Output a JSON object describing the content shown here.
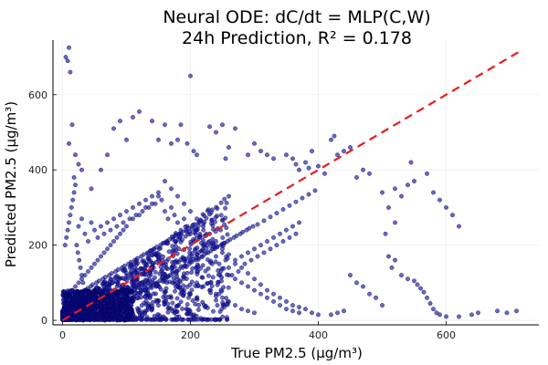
{
  "chart_data": {
    "type": "scatter",
    "title_line1": "Neural ODE: dC/dt = MLP(C,W)",
    "title_line2": "24h Prediction, R² = 0.178",
    "xlabel": "True PM2.5 (μg/m³)",
    "ylabel": "Predicted PM2.5 (μg/m³)",
    "xlim": [
      -15,
      745
    ],
    "ylim": [
      -12,
      745
    ],
    "xticks": [
      0,
      200,
      400,
      600
    ],
    "yticks": [
      0,
      200,
      400,
      600
    ],
    "grid": true,
    "legend": "none",
    "point_color": "#1a1aa0",
    "point_edge_color": "#000060",
    "reference_line": {
      "style": "dashed",
      "color": "#e81b1b",
      "x": [
        0,
        720
      ],
      "y": [
        0,
        720
      ]
    },
    "points": [
      [
        5,
        700
      ],
      [
        10,
        725
      ],
      [
        8,
        690
      ],
      [
        12,
        660
      ],
      [
        15,
        520
      ],
      [
        10,
        470
      ],
      [
        20,
        440
      ],
      [
        25,
        415
      ],
      [
        30,
        400
      ],
      [
        18,
        380
      ],
      [
        45,
        350
      ],
      [
        60,
        400
      ],
      [
        70,
        440
      ],
      [
        80,
        510
      ],
      [
        90,
        530
      ],
      [
        110,
        540
      ],
      [
        120,
        555
      ],
      [
        100,
        480
      ],
      [
        140,
        530
      ],
      [
        150,
        480
      ],
      [
        160,
        520
      ],
      [
        170,
        470
      ],
      [
        180,
        480
      ],
      [
        185,
        520
      ],
      [
        195,
        470
      ],
      [
        200,
        650
      ],
      [
        205,
        450
      ],
      [
        210,
        440
      ],
      [
        230,
        515
      ],
      [
        240,
        500
      ],
      [
        250,
        520
      ],
      [
        255,
        430
      ],
      [
        260,
        460
      ],
      [
        270,
        510
      ],
      [
        290,
        440
      ],
      [
        300,
        470
      ],
      [
        310,
        450
      ],
      [
        320,
        440
      ],
      [
        330,
        430
      ],
      [
        350,
        440
      ],
      [
        360,
        430
      ],
      [
        365,
        415
      ],
      [
        370,
        400
      ],
      [
        380,
        420
      ],
      [
        385,
        405
      ],
      [
        390,
        450
      ],
      [
        400,
        410
      ],
      [
        410,
        390
      ],
      [
        420,
        480
      ],
      [
        425,
        490
      ],
      [
        430,
        440
      ],
      [
        440,
        450
      ],
      [
        450,
        460
      ],
      [
        460,
        380
      ],
      [
        470,
        400
      ],
      [
        480,
        390
      ],
      [
        500,
        340
      ],
      [
        510,
        300
      ],
      [
        520,
        350
      ],
      [
        530,
        330
      ],
      [
        540,
        360
      ],
      [
        545,
        420
      ],
      [
        550,
        370
      ],
      [
        570,
        390
      ],
      [
        580,
        340
      ],
      [
        590,
        320
      ],
      [
        600,
        300
      ],
      [
        610,
        280
      ],
      [
        620,
        250
      ],
      [
        520,
        260
      ],
      [
        505,
        230
      ],
      [
        510,
        170
      ],
      [
        515,
        140
      ],
      [
        520,
        160
      ],
      [
        530,
        120
      ],
      [
        540,
        110
      ],
      [
        550,
        105
      ],
      [
        555,
        95
      ],
      [
        560,
        85
      ],
      [
        565,
        75
      ],
      [
        570,
        60
      ],
      [
        575,
        45
      ],
      [
        580,
        30
      ],
      [
        585,
        20
      ],
      [
        590,
        15
      ],
      [
        600,
        10
      ],
      [
        620,
        10
      ],
      [
        640,
        15
      ],
      [
        650,
        20
      ],
      [
        680,
        25
      ],
      [
        695,
        20
      ],
      [
        710,
        25
      ],
      [
        450,
        120
      ],
      [
        460,
        100
      ],
      [
        470,
        90
      ],
      [
        480,
        70
      ],
      [
        490,
        60
      ],
      [
        500,
        40
      ],
      [
        440,
        25
      ],
      [
        430,
        20
      ],
      [
        420,
        15
      ],
      [
        400,
        15
      ],
      [
        390,
        20
      ],
      [
        380,
        30
      ],
      [
        370,
        35
      ],
      [
        360,
        40
      ],
      [
        350,
        50
      ],
      [
        340,
        60
      ],
      [
        330,
        70
      ],
      [
        320,
        80
      ],
      [
        310,
        95
      ],
      [
        300,
        110
      ],
      [
        290,
        125
      ],
      [
        280,
        140
      ],
      [
        270,
        160
      ],
      [
        260,
        175
      ],
      [
        250,
        190
      ],
      [
        240,
        210
      ],
      [
        230,
        230
      ],
      [
        220,
        250
      ],
      [
        210,
        270
      ],
      [
        200,
        290
      ],
      [
        190,
        310
      ],
      [
        180,
        330
      ],
      [
        170,
        350
      ],
      [
        160,
        370
      ],
      [
        150,
        330
      ],
      [
        140,
        310
      ],
      [
        130,
        300
      ],
      [
        120,
        280
      ],
      [
        110,
        270
      ],
      [
        100,
        250
      ],
      [
        95,
        240
      ],
      [
        90,
        230
      ],
      [
        85,
        220
      ],
      [
        80,
        210
      ],
      [
        75,
        200
      ],
      [
        70,
        190
      ],
      [
        65,
        180
      ],
      [
        60,
        170
      ],
      [
        55,
        160
      ],
      [
        50,
        150
      ],
      [
        45,
        140
      ],
      [
        40,
        130
      ],
      [
        35,
        120
      ],
      [
        30,
        110
      ],
      [
        25,
        100
      ],
      [
        20,
        90
      ],
      [
        15,
        80
      ],
      [
        10,
        70
      ],
      [
        5,
        60
      ],
      [
        8,
        55
      ],
      [
        12,
        50
      ],
      [
        18,
        45
      ],
      [
        22,
        40
      ],
      [
        28,
        35
      ],
      [
        32,
        30
      ],
      [
        38,
        25
      ],
      [
        42,
        20
      ],
      [
        48,
        15
      ],
      [
        52,
        10
      ],
      [
        58,
        8
      ],
      [
        62,
        12
      ],
      [
        68,
        18
      ],
      [
        72,
        25
      ],
      [
        78,
        30
      ],
      [
        82,
        35
      ],
      [
        88,
        40
      ],
      [
        92,
        45
      ],
      [
        98,
        50
      ],
      [
        102,
        55
      ],
      [
        108,
        60
      ],
      [
        112,
        65
      ],
      [
        118,
        70
      ],
      [
        122,
        75
      ],
      [
        128,
        80
      ],
      [
        132,
        85
      ],
      [
        138,
        90
      ],
      [
        142,
        95
      ],
      [
        148,
        100
      ],
      [
        152,
        105
      ],
      [
        158,
        110
      ],
      [
        162,
        115
      ],
      [
        168,
        120
      ],
      [
        172,
        125
      ],
      [
        178,
        130
      ],
      [
        182,
        135
      ],
      [
        188,
        140
      ],
      [
        192,
        145
      ],
      [
        198,
        150
      ],
      [
        202,
        155
      ],
      [
        208,
        160
      ],
      [
        212,
        165
      ],
      [
        218,
        170
      ],
      [
        222,
        175
      ],
      [
        228,
        180
      ],
      [
        232,
        185
      ],
      [
        238,
        190
      ],
      [
        242,
        195
      ],
      [
        248,
        200
      ],
      [
        252,
        205
      ],
      [
        258,
        210
      ],
      [
        262,
        215
      ],
      [
        268,
        220
      ],
      [
        272,
        225
      ],
      [
        278,
        230
      ],
      [
        282,
        235
      ],
      [
        288,
        240
      ],
      [
        292,
        245
      ],
      [
        298,
        250
      ],
      [
        305,
        255
      ],
      [
        315,
        265
      ],
      [
        325,
        275
      ],
      [
        335,
        285
      ],
      [
        345,
        295
      ],
      [
        355,
        305
      ],
      [
        365,
        315
      ],
      [
        375,
        325
      ],
      [
        385,
        335
      ],
      [
        395,
        345
      ],
      [
        260,
        120
      ],
      [
        270,
        110
      ],
      [
        280,
        100
      ],
      [
        290,
        90
      ],
      [
        300,
        80
      ],
      [
        310,
        70
      ],
      [
        320,
        60
      ],
      [
        330,
        50
      ],
      [
        340,
        40
      ],
      [
        350,
        30
      ],
      [
        360,
        25
      ],
      [
        370,
        20
      ],
      [
        210,
        100
      ],
      [
        220,
        90
      ],
      [
        230,
        80
      ],
      [
        240,
        70
      ],
      [
        250,
        60
      ],
      [
        260,
        50
      ],
      [
        270,
        40
      ],
      [
        280,
        30
      ],
      [
        290,
        25
      ],
      [
        300,
        20
      ],
      [
        180,
        90
      ],
      [
        190,
        80
      ],
      [
        200,
        70
      ],
      [
        170,
        60
      ],
      [
        160,
        50
      ],
      [
        150,
        40
      ],
      [
        140,
        30
      ],
      [
        130,
        25
      ],
      [
        120,
        20
      ],
      [
        110,
        15
      ],
      [
        100,
        10
      ],
      [
        90,
        12
      ],
      [
        80,
        14
      ],
      [
        70,
        16
      ],
      [
        60,
        18
      ],
      [
        50,
        20
      ],
      [
        40,
        22
      ],
      [
        30,
        24
      ],
      [
        20,
        26
      ],
      [
        10,
        28
      ],
      [
        5,
        30
      ],
      [
        3,
        35
      ],
      [
        6,
        40
      ],
      [
        9,
        45
      ],
      [
        14,
        50
      ],
      [
        16,
        55
      ],
      [
        19,
        60
      ],
      [
        23,
        65
      ],
      [
        27,
        70
      ],
      [
        31,
        75
      ],
      [
        36,
        80
      ],
      [
        39,
        85
      ],
      [
        44,
        90
      ],
      [
        47,
        95
      ],
      [
        53,
        100
      ],
      [
        57,
        105
      ],
      [
        63,
        110
      ],
      [
        67,
        115
      ],
      [
        73,
        120
      ],
      [
        77,
        125
      ],
      [
        83,
        130
      ],
      [
        87,
        135
      ],
      [
        93,
        140
      ],
      [
        97,
        145
      ],
      [
        103,
        150
      ],
      [
        107,
        155
      ],
      [
        113,
        160
      ],
      [
        117,
        165
      ],
      [
        123,
        170
      ],
      [
        127,
        175
      ],
      [
        133,
        180
      ],
      [
        137,
        185
      ],
      [
        143,
        190
      ],
      [
        147,
        195
      ],
      [
        153,
        200
      ],
      [
        157,
        205
      ],
      [
        163,
        210
      ],
      [
        167,
        215
      ],
      [
        173,
        220
      ],
      [
        177,
        225
      ],
      [
        183,
        230
      ],
      [
        187,
        235
      ],
      [
        193,
        240
      ],
      [
        197,
        245
      ],
      [
        203,
        250
      ],
      [
        207,
        255
      ],
      [
        213,
        260
      ],
      [
        217,
        265
      ],
      [
        4,
        200
      ],
      [
        6,
        220
      ],
      [
        8,
        240
      ],
      [
        10,
        260
      ],
      [
        12,
        280
      ],
      [
        14,
        300
      ],
      [
        16,
        320
      ],
      [
        18,
        340
      ],
      [
        20,
        360
      ],
      [
        22,
        200
      ],
      [
        24,
        180
      ],
      [
        26,
        160
      ],
      [
        28,
        140
      ],
      [
        30,
        120
      ],
      [
        32,
        100
      ],
      [
        34,
        80
      ],
      [
        36,
        60
      ],
      [
        38,
        40
      ],
      [
        40,
        30
      ],
      [
        42,
        50
      ],
      [
        25,
        250
      ],
      [
        30,
        270
      ],
      [
        35,
        230
      ],
      [
        40,
        210
      ],
      [
        45,
        260
      ],
      [
        50,
        240
      ],
      [
        55,
        220
      ],
      [
        60,
        250
      ],
      [
        65,
        230
      ],
      [
        70,
        260
      ],
      [
        75,
        240
      ],
      [
        80,
        270
      ],
      [
        85,
        250
      ],
      [
        90,
        280
      ],
      [
        95,
        260
      ],
      [
        100,
        290
      ],
      [
        105,
        270
      ],
      [
        110,
        300
      ],
      [
        115,
        280
      ],
      [
        120,
        310
      ],
      [
        125,
        290
      ],
      [
        130,
        320
      ],
      [
        135,
        300
      ],
      [
        140,
        330
      ],
      [
        145,
        310
      ],
      [
        150,
        340
      ],
      [
        155,
        320
      ],
      [
        160,
        290
      ],
      [
        165,
        270
      ],
      [
        170,
        300
      ],
      [
        175,
        280
      ],
      [
        180,
        260
      ],
      [
        185,
        240
      ],
      [
        190,
        270
      ],
      [
        195,
        250
      ],
      [
        200,
        230
      ],
      [
        205,
        210
      ],
      [
        210,
        240
      ],
      [
        215,
        220
      ],
      [
        220,
        200
      ],
      [
        225,
        180
      ],
      [
        230,
        210
      ],
      [
        235,
        190
      ],
      [
        240,
        170
      ],
      [
        245,
        150
      ],
      [
        250,
        180
      ],
      [
        255,
        160
      ],
      [
        260,
        140
      ],
      [
        265,
        120
      ],
      [
        270,
        150
      ],
      [
        275,
        130
      ],
      [
        280,
        170
      ],
      [
        285,
        150
      ],
      [
        290,
        180
      ],
      [
        295,
        160
      ],
      [
        300,
        190
      ],
      [
        305,
        170
      ],
      [
        310,
        200
      ],
      [
        315,
        180
      ],
      [
        320,
        210
      ],
      [
        325,
        190
      ],
      [
        330,
        220
      ],
      [
        335,
        200
      ],
      [
        340,
        230
      ],
      [
        345,
        210
      ],
      [
        350,
        240
      ],
      [
        355,
        220
      ],
      [
        360,
        250
      ],
      [
        365,
        230
      ],
      [
        370,
        260
      ]
    ]
  }
}
